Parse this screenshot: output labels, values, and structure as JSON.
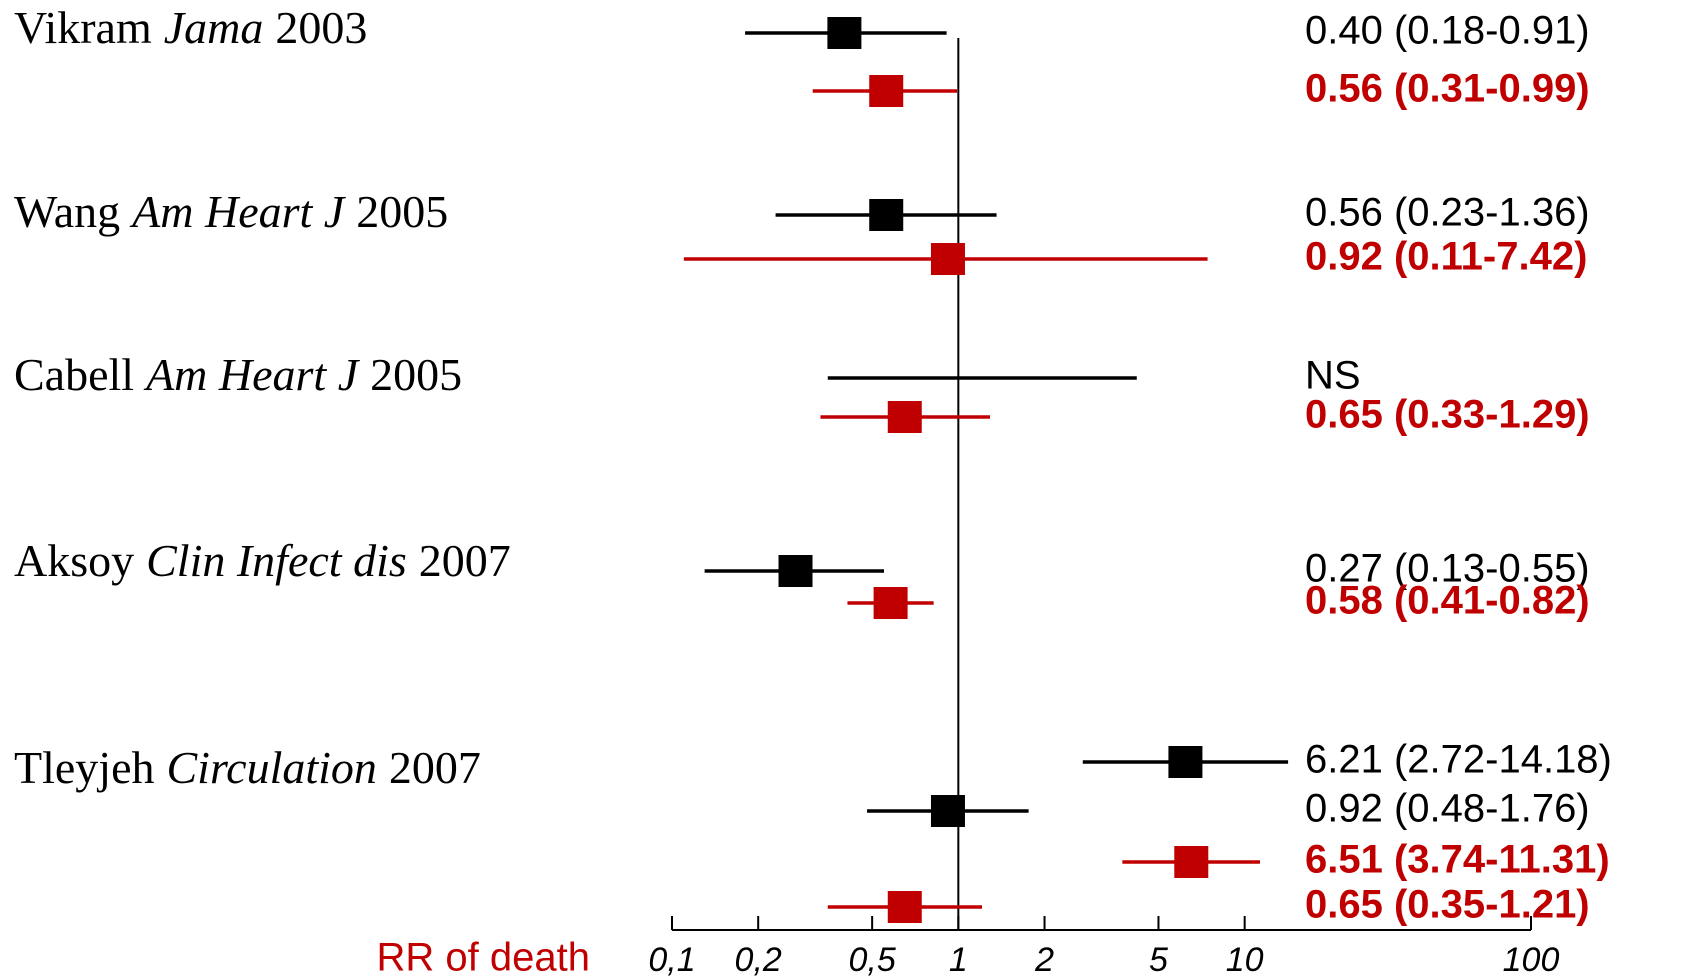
{
  "chart_data": {
    "type": "forest",
    "xlabel": "RR of death",
    "log_scale": true,
    "xlim": [
      0.1,
      100
    ],
    "xticks": [
      {
        "value": 0.1,
        "label": "0,1"
      },
      {
        "value": 0.2,
        "label": "0,2"
      },
      {
        "value": 0.5,
        "label": "0,5"
      },
      1,
      2,
      5,
      10,
      100
    ],
    "reference_line": 1,
    "studies": [
      {
        "author": "Vikram",
        "journal": "Jama",
        "year": "2003",
        "rows": [
          {
            "color": "#000000",
            "bold": false,
            "estimate": 0.4,
            "low": 0.18,
            "high": 0.91,
            "label": "0.40 (0.18-0.91)"
          },
          {
            "color": "#c00000",
            "bold": true,
            "estimate": 0.56,
            "low": 0.31,
            "high": 0.99,
            "label": "0.56 (0.31-0.99)"
          }
        ]
      },
      {
        "author": "Wang",
        "journal": "Am Heart J",
        "year": "2005",
        "rows": [
          {
            "color": "#000000",
            "bold": false,
            "estimate": 0.56,
            "low": 0.23,
            "high": 1.36,
            "label": "0.56 (0.23-1.36)"
          },
          {
            "color": "#c00000",
            "bold": true,
            "estimate": 0.92,
            "low": 0.11,
            "high": 7.42,
            "label": "0.92 (0.11-7.42)"
          }
        ]
      },
      {
        "author": "Cabell",
        "journal": "Am Heart J",
        "year": "2005",
        "rows": [
          {
            "color": "#000000",
            "bold": false,
            "estimate": null,
            "low": 0.35,
            "high": 4.2,
            "label": "NS"
          },
          {
            "color": "#c00000",
            "bold": true,
            "estimate": 0.65,
            "low": 0.33,
            "high": 1.29,
            "label": "0.65 (0.33-1.29)"
          }
        ]
      },
      {
        "author": "Aksoy",
        "journal": "Clin Infect dis",
        "year": "2007",
        "rows": [
          {
            "color": "#000000",
            "bold": false,
            "estimate": 0.27,
            "low": 0.13,
            "high": 0.55,
            "label": "0.27 (0.13-0.55)"
          },
          {
            "color": "#c00000",
            "bold": true,
            "estimate": 0.58,
            "low": 0.41,
            "high": 0.82,
            "label": "0.58 (0.41-0.82)"
          }
        ]
      },
      {
        "author": "Tleyjeh",
        "journal": "Circulation",
        "year": "2007",
        "rows": [
          {
            "color": "#000000",
            "bold": false,
            "estimate": 6.21,
            "low": 2.72,
            "high": 14.18,
            "label": "6.21 (2.72-14.18)"
          },
          {
            "color": "#000000",
            "bold": false,
            "estimate": 0.92,
            "low": 0.48,
            "high": 1.76,
            "label": "0.92 (0.48-1.76)"
          },
          {
            "color": "#c00000",
            "bold": true,
            "estimate": 6.51,
            "low": 3.74,
            "high": 11.31,
            "label": "6.51 (3.74-11.31)"
          },
          {
            "color": "#c00000",
            "bold": true,
            "estimate": 0.65,
            "low": 0.35,
            "high": 1.21,
            "label": "0.65 (0.35-1.21)"
          }
        ]
      }
    ]
  }
}
